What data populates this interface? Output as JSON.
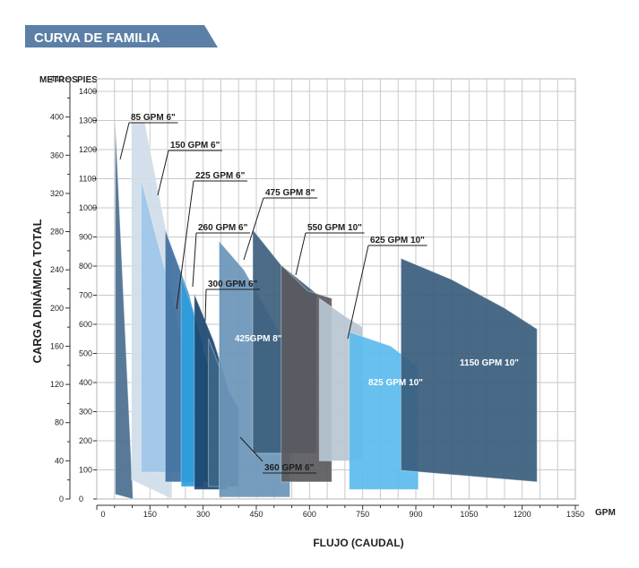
{
  "header": {
    "title": "CURVA DE FAMILIA",
    "color": "#5b7fa6"
  },
  "chart_data": {
    "type": "area",
    "title": "CURVA DE FAMILIA",
    "xlabel": "FLUJO (CAUDAL)",
    "xunit": "GPM",
    "ylabel": "CARGA DINÁMICA TOTAL",
    "y_left_unit": "METROS",
    "y_right_unit": "PIES",
    "xlim": [
      0,
      1350
    ],
    "ylim_m": [
      0,
      440
    ],
    "ylim_ft": [
      0,
      1443
    ],
    "x_ticks": [
      0,
      150,
      300,
      450,
      600,
      750,
      900,
      1050,
      1200,
      1350
    ],
    "x_tick_labels": [
      "0",
      "150",
      "300",
      "450",
      "600",
      "750",
      "900",
      "1050",
      "1200",
      "1350"
    ],
    "y_ticks_m": [
      0,
      40,
      80,
      120,
      160,
      200,
      240,
      280,
      320,
      360,
      400,
      440
    ],
    "y_tick_labels_m": [
      "0",
      "40",
      "80",
      "120",
      "160",
      "200",
      "240",
      "280",
      "320",
      "360",
      "400",
      "440"
    ],
    "y_ticks_ft": [
      0,
      100,
      200,
      300,
      400,
      500,
      600,
      700,
      800,
      900,
      1000,
      1100,
      1200,
      1300,
      1400
    ],
    "y_tick_labels_ft": [
      "0",
      "100",
      "200",
      "300",
      "400",
      "500",
      "600",
      "700",
      "800",
      "900",
      "1000",
      "1100",
      "1200",
      "1300",
      "1400"
    ],
    "grid": true,
    "series": [
      {
        "name": "85 GPM 6\"",
        "color": "#4a6f8f",
        "label_pos": "top",
        "polygon": [
          [
            52,
            5
          ],
          [
            52,
            395
          ],
          [
            102,
            0
          ]
        ]
      },
      {
        "name": "150 GPM 6\"",
        "color": "#cfdde9",
        "label_pos": "top",
        "polygon": [
          [
            98,
            20
          ],
          [
            98,
            395
          ],
          [
            135,
            395
          ],
          [
            212,
            250
          ],
          [
            212,
            0
          ]
        ]
      },
      {
        "name": "225 GPM 6\"",
        "color": "#9ec5e8",
        "label_pos": "top",
        "polygon": [
          [
            125,
            28
          ],
          [
            125,
            335
          ],
          [
            210,
            215
          ],
          [
            260,
            130
          ],
          [
            260,
            28
          ]
        ]
      },
      {
        "name": "260 GPM 6\"",
        "color": "#3f6f9e",
        "label_pos": "top",
        "polygon": [
          [
            193,
            18
          ],
          [
            193,
            282
          ],
          [
            260,
            215
          ],
          [
            313,
            140
          ],
          [
            313,
            18
          ]
        ]
      },
      {
        "name": "",
        "color": "#2c9ee0",
        "polygon": [
          [
            238,
            13
          ],
          [
            238,
            234
          ],
          [
            270,
            200
          ],
          [
            300,
            160
          ],
          [
            300,
            13
          ]
        ]
      },
      {
        "name": "300 GPM 6\"",
        "color": "#1b476f",
        "label_pos": "top",
        "polygon": [
          [
            275,
            10
          ],
          [
            275,
            215
          ],
          [
            330,
            165
          ],
          [
            368,
            120
          ],
          [
            368,
            10
          ]
        ]
      },
      {
        "name": "360 GPM 6\"",
        "color": "#3b6588",
        "label_pos": "bottom",
        "polygon": [
          [
            315,
            13
          ],
          [
            315,
            168
          ],
          [
            370,
            115
          ],
          [
            400,
            95
          ],
          [
            400,
            13
          ]
        ]
      },
      {
        "name": "425GPM 8\"",
        "color": "#6a95b8",
        "label_pos": "inside",
        "polygon": [
          [
            345,
            2
          ],
          [
            345,
            270
          ],
          [
            415,
            240
          ],
          [
            545,
            155
          ],
          [
            545,
            2
          ]
        ]
      },
      {
        "name": "475 GPM 8\"",
        "color": "#3d5f7e",
        "label_pos": "top",
        "polygon": [
          [
            440,
            48
          ],
          [
            440,
            282
          ],
          [
            520,
            245
          ],
          [
            620,
            215
          ],
          [
            620,
            48
          ]
        ]
      },
      {
        "name": "550 GPM 10\"",
        "color": "#5a5a5e",
        "label_pos": "top",
        "polygon": [
          [
            520,
            18
          ],
          [
            520,
            245
          ],
          [
            595,
            218
          ],
          [
            663,
            210
          ],
          [
            663,
            18
          ]
        ]
      },
      {
        "name": "625 GPM 10\"",
        "color": "#b7c7d4",
        "label_pos": "top",
        "polygon": [
          [
            628,
            40
          ],
          [
            628,
            210
          ],
          [
            706,
            190
          ],
          [
            750,
            180
          ],
          [
            750,
            40
          ]
        ]
      },
      {
        "name": "825 GPM 10\"",
        "color": "#5bbbee",
        "label_pos": "inside",
        "polygon": [
          [
            712,
            10
          ],
          [
            712,
            175
          ],
          [
            830,
            160
          ],
          [
            907,
            138
          ],
          [
            907,
            10
          ]
        ]
      },
      {
        "name": "1150 GPM 10\"",
        "color": "#3a5d7d",
        "label_pos": "inside",
        "polygon": [
          [
            858,
            30
          ],
          [
            858,
            252
          ],
          [
            1000,
            230
          ],
          [
            1150,
            200
          ],
          [
            1242,
            178
          ],
          [
            1242,
            18
          ]
        ]
      }
    ]
  }
}
